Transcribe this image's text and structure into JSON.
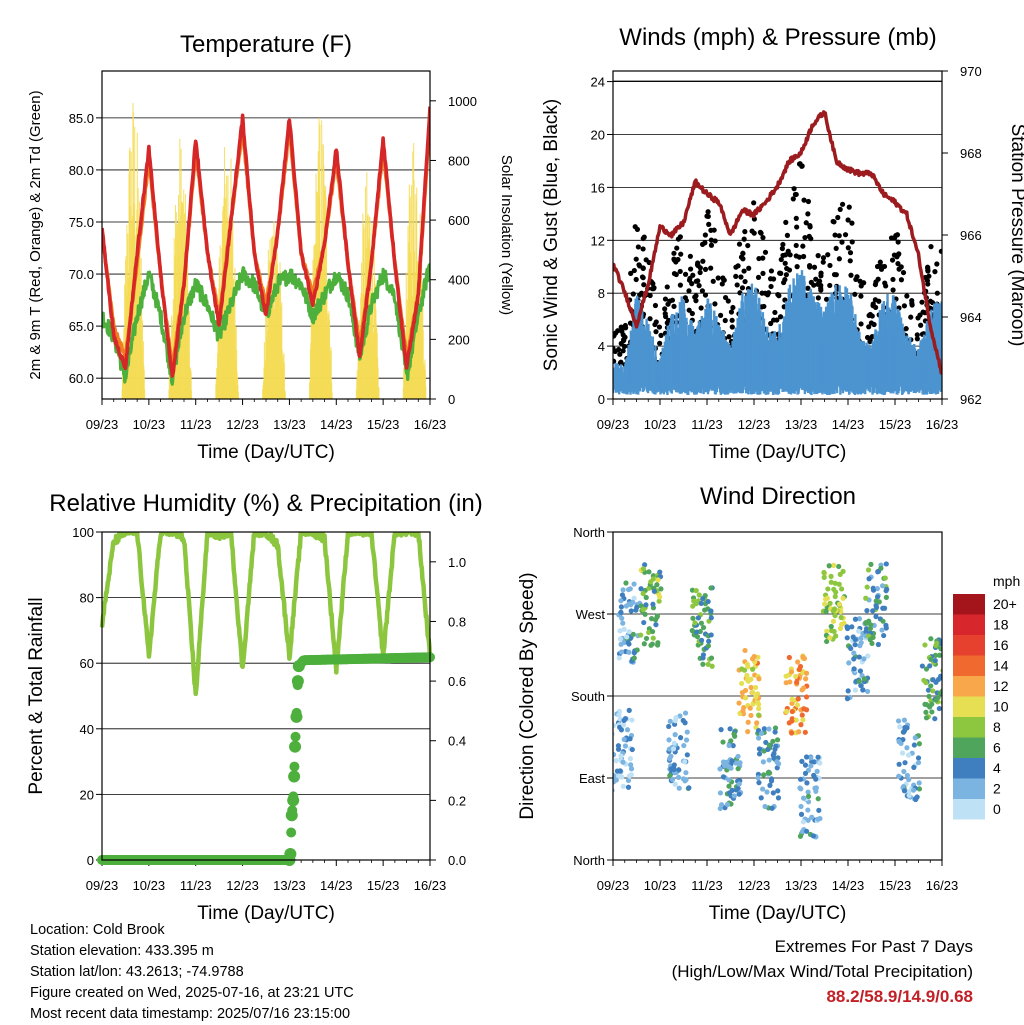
{
  "info": {
    "location": "Location: Cold Brook",
    "elevation": "Station elevation: 433.395 m",
    "latlon": "Station lat/lon: 43.2613; -74.9788",
    "created": "Figure created on Wed, 2025-07-16, at 23:21 UTC",
    "latest": "Most recent data timestamp: 2025/07/16 23:15:00"
  },
  "extremes": {
    "title": "Extremes For Past 7 Days",
    "subtitle": "(High/Low/Max Wind/Total Precipitation)",
    "values": "88.2/58.9/14.9/0.68"
  },
  "chart_data": [
    {
      "id": "temperature",
      "type": "line",
      "title": "Temperature (F)",
      "xlabel": "Time (Day/UTC)",
      "ylabel": "2m & 9m T (Red, Orange) & 2m Td (Green)",
      "y2label": "Solar Insolation (Yellow)",
      "x_ticks": [
        "09/23",
        "10/23",
        "11/23",
        "12/23",
        "13/23",
        "14/23",
        "15/23",
        "16/23"
      ],
      "ylim": [
        58,
        89.5
      ],
      "y_ticks": [
        "60.0",
        "65.0",
        "70.0",
        "75.0",
        "80.0",
        "85.0"
      ],
      "y_tick_values": [
        60,
        65,
        70,
        75,
        80,
        85
      ],
      "y2lim": [
        0,
        1100
      ],
      "y2_ticks": [
        "0",
        "200",
        "400",
        "600",
        "800",
        "1000"
      ],
      "y2_tick_values": [
        0,
        200,
        400,
        600,
        800,
        1000
      ],
      "grid": true,
      "colors": {
        "t2m": "#d62728",
        "t9m": "#f07d22",
        "td2m": "#4daf3c",
        "solar": "#f5dc55"
      },
      "x_days": [
        0,
        0.25,
        0.5,
        0.75,
        1.0,
        1.25,
        1.5,
        1.75,
        2.0,
        2.25,
        2.5,
        2.75,
        3.0,
        3.25,
        3.5,
        3.75,
        4.0,
        4.25,
        4.5,
        4.75,
        5.0,
        5.25,
        5.5,
        5.75,
        6.0,
        6.25,
        6.5,
        6.75,
        7.0
      ],
      "series": [
        {
          "key": "t2m",
          "values": [
            74.5,
            64,
            61,
            72,
            82,
            70,
            60,
            69,
            83,
            72,
            65,
            75,
            85,
            72,
            66,
            74,
            85,
            72,
            67,
            73,
            82,
            71,
            62,
            71,
            83,
            71,
            61,
            68,
            86
          ]
        },
        {
          "key": "t9m",
          "values": [
            74,
            65,
            62,
            71,
            81,
            70,
            61,
            69,
            82,
            72,
            66,
            75,
            84,
            72,
            67,
            74,
            84,
            72,
            68,
            73,
            81,
            71,
            63,
            71,
            82,
            71,
            62,
            68,
            85
          ]
        },
        {
          "key": "td2m",
          "values": [
            66,
            64,
            60,
            66,
            70,
            66,
            60,
            66,
            69,
            67,
            64,
            67,
            70,
            69,
            66,
            69,
            70,
            69,
            66,
            68,
            70,
            68,
            62,
            67,
            70,
            68,
            60,
            66,
            71
          ]
        }
      ],
      "solar_peaks": [
        1050,
        900,
        950,
        700,
        1000,
        780,
        950,
        700,
        900,
        750,
        1000,
        1050,
        1000
      ]
    },
    {
      "id": "winds",
      "type": "scatter",
      "title": "Winds (mph) & Pressure (mb)",
      "xlabel": "Time (Day/UTC)",
      "ylabel": "Sonic Wind & Gust (Blue, Black)",
      "y2label": "Station Pressure (Maroon)",
      "x_ticks": [
        "09/23",
        "10/23",
        "11/23",
        "12/23",
        "13/23",
        "14/23",
        "15/23",
        "16/23"
      ],
      "ylim": [
        0,
        24.8
      ],
      "y_ticks": [
        "0",
        "4",
        "8",
        "12",
        "16",
        "20",
        "24"
      ],
      "y_tick_values": [
        0,
        4,
        8,
        12,
        16,
        20,
        24
      ],
      "y2lim": [
        962,
        970
      ],
      "y2_ticks": [
        "962",
        "964",
        "966",
        "968",
        "970"
      ],
      "y2_tick_values": [
        962,
        964,
        966,
        968,
        970
      ],
      "grid": true,
      "colors": {
        "wind": "#4c94d0",
        "gust": "#000000",
        "pressure": "#9b1b1f"
      },
      "pressure_x": [
        0,
        0.25,
        0.5,
        0.75,
        1.0,
        1.25,
        1.5,
        1.75,
        2.0,
        2.25,
        2.5,
        2.75,
        3.0,
        3.25,
        3.5,
        3.75,
        4.0,
        4.25,
        4.5,
        4.75,
        5.0,
        5.25,
        5.5,
        5.75,
        6.0,
        6.25,
        6.5,
        6.75,
        7.0
      ],
      "pressure_values": [
        965.3,
        964.6,
        963.8,
        964.8,
        966.2,
        966.0,
        966.3,
        967.3,
        967.0,
        966.8,
        966.0,
        966.6,
        966.5,
        966.8,
        967.2,
        967.8,
        968.0,
        968.7,
        969.0,
        967.8,
        967.6,
        967.5,
        967.5,
        967.0,
        966.8,
        966.5,
        965.5,
        963.8,
        962.6
      ],
      "wind_envelope": [
        3,
        2.5,
        8,
        6,
        3,
        7,
        8,
        5,
        8,
        6,
        4,
        8,
        9,
        6,
        5,
        9,
        10,
        8,
        7,
        9,
        9,
        5,
        4,
        8,
        8,
        5,
        4,
        7,
        8
      ],
      "gust_envelope": [
        5,
        4,
        13,
        10,
        4,
        9,
        12,
        8,
        13,
        11,
        6,
        12,
        14,
        10,
        7,
        14,
        17,
        12,
        9,
        13,
        14,
        8,
        6,
        11,
        12,
        7,
        5,
        10,
        12
      ]
    },
    {
      "id": "humidity",
      "type": "line",
      "title": "Relative Humidity (%) & Precipitation (in)",
      "xlabel": "Time (Day/UTC)",
      "ylabel": "Percent & Total Rainfall",
      "x_ticks": [
        "09/23",
        "10/23",
        "11/23",
        "12/23",
        "13/23",
        "14/23",
        "15/23",
        "16/23"
      ],
      "ylim": [
        0,
        100
      ],
      "y_ticks": [
        "0",
        "20",
        "40",
        "60",
        "80",
        "100"
      ],
      "y_tick_values": [
        0,
        20,
        40,
        60,
        80,
        100
      ],
      "y2lim": [
        0,
        1.1
      ],
      "y2_ticks": [
        "0.0",
        "0.2",
        "0.4",
        "0.6",
        "0.8",
        "1.0"
      ],
      "y2_tick_values": [
        0,
        0.2,
        0.4,
        0.6,
        0.8,
        1.0
      ],
      "grid": true,
      "colors": {
        "rh": "#8cc63f",
        "precip": "#4daf3c"
      },
      "x_days": [
        0,
        0.25,
        0.5,
        0.75,
        1.0,
        1.25,
        1.5,
        1.75,
        2.0,
        2.25,
        2.5,
        2.75,
        3.0,
        3.25,
        3.5,
        3.75,
        4.0,
        4.25,
        4.5,
        4.75,
        5.0,
        5.25,
        5.5,
        5.75,
        6.0,
        6.25,
        6.5,
        6.75,
        7.0
      ],
      "series": [
        {
          "key": "rh",
          "values": [
            72,
            97,
            100,
            100,
            62,
            100,
            100,
            98,
            50,
            100,
            99,
            100,
            58,
            100,
            100,
            96,
            62,
            100,
            100,
            98,
            58,
            100,
            100,
            100,
            62,
            100,
            100,
            100,
            62
          ]
        }
      ],
      "precip": {
        "days": [
          0,
          4.0,
          4.02,
          4.05,
          4.08,
          4.1,
          4.12,
          4.15,
          4.18,
          4.2,
          4.3,
          7.0
        ],
        "values": [
          0,
          0,
          0.02,
          0.15,
          0.2,
          0.28,
          0.38,
          0.48,
          0.6,
          0.65,
          0.67,
          0.68
        ]
      }
    },
    {
      "id": "direction",
      "type": "scatter",
      "title": "Wind Direction",
      "xlabel": "Time (Day/UTC)",
      "ylabel": "Direction (Colored By Speed)",
      "x_ticks": [
        "09/23",
        "10/23",
        "11/23",
        "12/23",
        "13/23",
        "14/23",
        "15/23",
        "16/23"
      ],
      "y_ticks": [
        "North",
        "East",
        "South",
        "West",
        "North"
      ],
      "y_tick_values": [
        0,
        90,
        180,
        270,
        360
      ],
      "ylim": [
        0,
        360
      ],
      "grid": true,
      "legend_title": "mph",
      "legend_labels": [
        "20+",
        "18",
        "16",
        "14",
        "12",
        "10",
        "8",
        "6",
        "4",
        "2",
        "0"
      ],
      "legend_colors": [
        "#a3141b",
        "#d7262c",
        "#e5412e",
        "#f0692e",
        "#f8a84a",
        "#e6df54",
        "#8dc63f",
        "#4fa55b",
        "#3f7fbf",
        "#7bb4e0",
        "#bfe1f5"
      ],
      "direction_clusters": [
        {
          "day": 0.2,
          "dir": 120,
          "spd": 2
        },
        {
          "day": 0.35,
          "dir": 260,
          "spd": 3
        },
        {
          "day": 0.8,
          "dir": 280,
          "spd": 7
        },
        {
          "day": 1.4,
          "dir": 120,
          "spd": 3
        },
        {
          "day": 1.9,
          "dir": 255,
          "spd": 6
        },
        {
          "day": 2.5,
          "dir": 100,
          "spd": 4
        },
        {
          "day": 2.9,
          "dir": 185,
          "spd": 11
        },
        {
          "day": 3.3,
          "dir": 100,
          "spd": 4
        },
        {
          "day": 3.9,
          "dir": 180,
          "spd": 12
        },
        {
          "day": 4.2,
          "dir": 70,
          "spd": 3
        },
        {
          "day": 4.7,
          "dir": 280,
          "spd": 8
        },
        {
          "day": 5.2,
          "dir": 220,
          "spd": 3
        },
        {
          "day": 5.6,
          "dir": 280,
          "spd": 5
        },
        {
          "day": 6.3,
          "dir": 110,
          "spd": 3
        },
        {
          "day": 6.8,
          "dir": 200,
          "spd": 6
        }
      ]
    }
  ]
}
